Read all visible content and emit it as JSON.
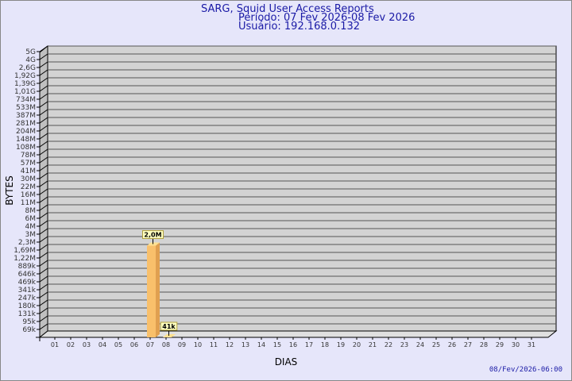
{
  "header": {
    "title": "SARG, Squid User Access Reports",
    "period": "Período: 07 Fev 2026-08 Fev 2026",
    "user": "Usuário: 192.168.0.132"
  },
  "footer": {
    "timestamp": "08/Fev/2026-06:00"
  },
  "chart_data": {
    "type": "bar",
    "xlabel": "DIAS",
    "ylabel": "BYTES",
    "y_scale": "log",
    "grid": true,
    "y_ticks": [
      "5G",
      "4G",
      "2,6G",
      "1,92G",
      "1,39G",
      "1,01G",
      "734M",
      "533M",
      "387M",
      "281M",
      "204M",
      "148M",
      "108M",
      "78M",
      "57M",
      "41M",
      "30M",
      "22M",
      "16M",
      "11M",
      "8M",
      "6M",
      "4M",
      "3M",
      "2,3M",
      "1,69M",
      "1,22M",
      "889k",
      "646k",
      "469k",
      "341k",
      "247k",
      "180k",
      "131k",
      "95k",
      "69k"
    ],
    "categories": [
      "01",
      "02",
      "03",
      "04",
      "05",
      "06",
      "07",
      "08",
      "09",
      "10",
      "11",
      "12",
      "13",
      "14",
      "15",
      "16",
      "17",
      "18",
      "19",
      "20",
      "21",
      "22",
      "23",
      "24",
      "25",
      "26",
      "27",
      "28",
      "29",
      "30",
      "31"
    ],
    "bars": [
      {
        "day": "07",
        "label": "2,0M"
      },
      {
        "day": "08",
        "label": "41k"
      }
    ],
    "colors": {
      "bar": "#f9c06b",
      "bar_side": "#e0a050",
      "wall": "#d3d3d3",
      "label_bg": "#ffffc0"
    }
  }
}
